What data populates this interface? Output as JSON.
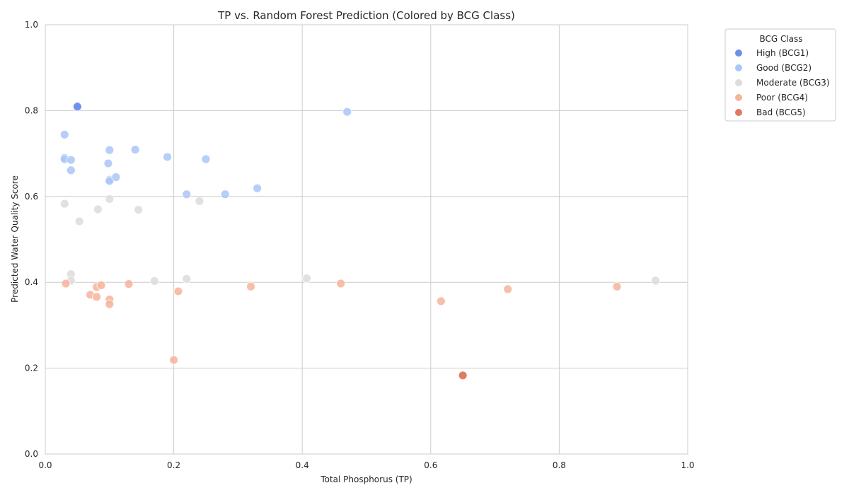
{
  "chart_data": {
    "type": "scatter",
    "title": "TP vs. Random Forest Prediction (Colored by BCG Class)",
    "xlabel": "Total Phosphorus (TP)",
    "ylabel": "Predicted Water Quality Score",
    "xlim": [
      0.0,
      1.0
    ],
    "ylim": [
      0.0,
      1.0
    ],
    "xticks": [
      "0.0",
      "0.2",
      "0.4",
      "0.6",
      "0.8",
      "1.0"
    ],
    "yticks": [
      "0.0",
      "0.2",
      "0.4",
      "0.6",
      "0.8",
      "1.0"
    ],
    "grid": true,
    "legend": {
      "title": "BCG Class",
      "placement": "outside-top-right"
    },
    "series": [
      {
        "name": "High (BCG1)",
        "color": "#6c8fec",
        "points": [
          [
            0.05,
            0.811
          ],
          [
            0.05,
            0.809
          ]
        ]
      },
      {
        "name": "Good (BCG2)",
        "color": "#aac6f8",
        "points": [
          [
            0.03,
            0.744
          ],
          [
            0.03,
            0.69
          ],
          [
            0.03,
            0.687
          ],
          [
            0.04,
            0.685
          ],
          [
            0.04,
            0.661
          ],
          [
            0.1,
            0.708
          ],
          [
            0.098,
            0.677
          ],
          [
            0.1,
            0.639
          ],
          [
            0.1,
            0.636
          ],
          [
            0.11,
            0.645
          ],
          [
            0.14,
            0.709
          ],
          [
            0.19,
            0.692
          ],
          [
            0.22,
            0.605
          ],
          [
            0.25,
            0.687
          ],
          [
            0.28,
            0.605
          ],
          [
            0.33,
            0.619
          ],
          [
            0.47,
            0.797
          ]
        ]
      },
      {
        "name": "Moderate (BCG3)",
        "color": "#dcdcdc",
        "points": [
          [
            0.03,
            0.583
          ],
          [
            0.053,
            0.542
          ],
          [
            0.082,
            0.57
          ],
          [
            0.1,
            0.594
          ],
          [
            0.145,
            0.569
          ],
          [
            0.24,
            0.589
          ],
          [
            0.04,
            0.419
          ],
          [
            0.04,
            0.404
          ],
          [
            0.17,
            0.403
          ],
          [
            0.22,
            0.408
          ],
          [
            0.407,
            0.409
          ],
          [
            0.95,
            0.404
          ]
        ]
      },
      {
        "name": "Poor (BCG4)",
        "color": "#f6b49b",
        "points": [
          [
            0.032,
            0.397
          ],
          [
            0.07,
            0.371
          ],
          [
            0.08,
            0.389
          ],
          [
            0.08,
            0.366
          ],
          [
            0.087,
            0.393
          ],
          [
            0.1,
            0.36
          ],
          [
            0.1,
            0.349
          ],
          [
            0.13,
            0.396
          ],
          [
            0.2,
            0.219
          ],
          [
            0.207,
            0.379
          ],
          [
            0.32,
            0.39
          ],
          [
            0.46,
            0.397
          ],
          [
            0.616,
            0.356
          ],
          [
            0.72,
            0.384
          ],
          [
            0.89,
            0.39
          ]
        ]
      },
      {
        "name": "Bad (BCG5)",
        "color": "#e07960",
        "points": [
          [
            0.65,
            0.184
          ],
          [
            0.65,
            0.183
          ]
        ]
      }
    ]
  }
}
